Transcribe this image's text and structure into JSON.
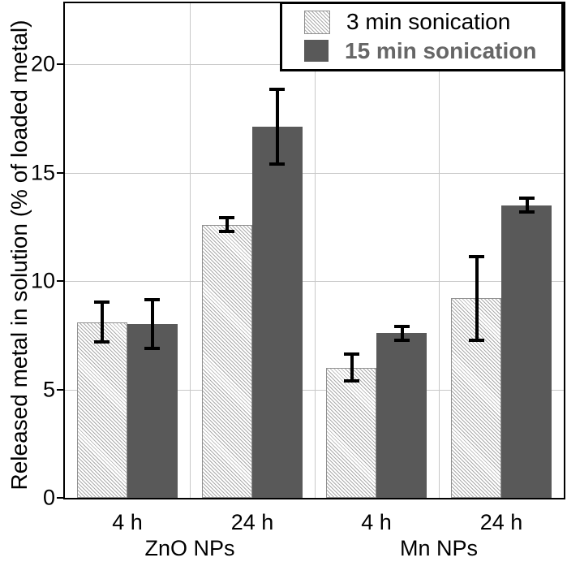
{
  "colors": {
    "dark_bar": "#595959",
    "hatch_line": "#ababab",
    "hatch_background": "#ffffff",
    "light_bar_border": "#909090",
    "grid_line": "#c8c8c8",
    "axis": "#000000",
    "error_bar": "#000000",
    "legend_secondary_text": "#666666",
    "text": "#000000"
  },
  "chart_data": {
    "type": "bar",
    "title": "",
    "ylabel": "Released metal in solution (% of loaded metal)",
    "xlabel": "",
    "ylim": [
      0,
      22.8
    ],
    "yticks": [
      0,
      5,
      10,
      15,
      20
    ],
    "grid": true,
    "legend_position": "top-right",
    "categories": [
      "4 h",
      "24 h",
      "4 h",
      "24 h"
    ],
    "group_labels": [
      {
        "label": "ZnO NPs",
        "spans_categories": [
          0,
          1
        ]
      },
      {
        "label": "Mn NPs",
        "spans_categories": [
          2,
          3
        ]
      }
    ],
    "series": [
      {
        "name": "3 min sonication",
        "style": "hatched",
        "values": [
          8.1,
          12.6,
          6.0,
          9.2
        ],
        "errors": [
          1.0,
          0.4,
          0.7,
          2.0
        ]
      },
      {
        "name": "15 min sonication",
        "style": "solid-dark",
        "values": [
          8.0,
          17.1,
          7.6,
          13.5
        ],
        "errors": [
          1.2,
          1.8,
          0.4,
          0.4
        ]
      }
    ]
  }
}
